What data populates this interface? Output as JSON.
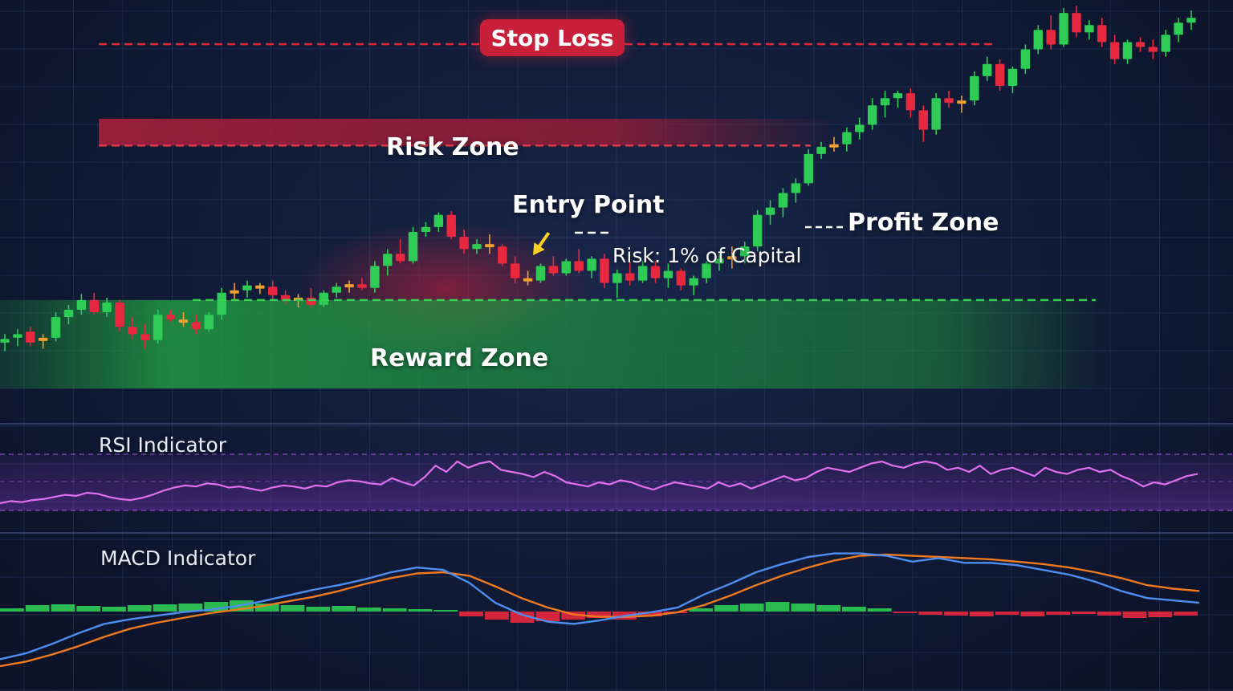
{
  "labels": {
    "stop_loss": "Stop Loss",
    "risk_zone": "Risk Zone",
    "reward_zone": "Reward Zone",
    "entry_point": "Entry Point",
    "profit_zone": "Profit Zone",
    "risk_note": "Risk: 1% of Capital",
    "rsi_title": "RSI Indicator",
    "macd_title": "MACD Indicator"
  },
  "colors": {
    "background": "#0f1830",
    "bull_candle": "#2ecc55",
    "bear_candle": "#e8283e",
    "doji_candle": "#f0a030",
    "stop_loss_line": "#e0283c",
    "reward_line": "#38d050",
    "rsi_line": "#e070f0",
    "macd_line": "#4d8ef0",
    "signal_line": "#f07a20",
    "histogram_positive": "#2ecc55",
    "histogram_negative": "#e8283e",
    "entry_arrow": "#ffd020"
  },
  "chart_data": [
    {
      "type": "candlestick",
      "title": "",
      "candles": [
        {
          "o": 55,
          "h": 62,
          "l": 48,
          "c": 58
        },
        {
          "o": 59,
          "h": 66,
          "l": 52,
          "c": 62
        },
        {
          "o": 64,
          "h": 68,
          "l": 52,
          "c": 55
        },
        {
          "o": 57,
          "h": 62,
          "l": 50,
          "c": 59
        },
        {
          "o": 59,
          "h": 80,
          "l": 56,
          "c": 76
        },
        {
          "o": 76,
          "h": 86,
          "l": 70,
          "c": 82
        },
        {
          "o": 82,
          "h": 95,
          "l": 78,
          "c": 90
        },
        {
          "o": 90,
          "h": 96,
          "l": 78,
          "c": 80
        },
        {
          "o": 80,
          "h": 92,
          "l": 76,
          "c": 88
        },
        {
          "o": 88,
          "h": 90,
          "l": 64,
          "c": 68
        },
        {
          "o": 68,
          "h": 76,
          "l": 58,
          "c": 62
        },
        {
          "o": 62,
          "h": 70,
          "l": 50,
          "c": 57
        },
        {
          "o": 57,
          "h": 82,
          "l": 54,
          "c": 78
        },
        {
          "o": 78,
          "h": 82,
          "l": 72,
          "c": 74
        },
        {
          "o": 74,
          "h": 80,
          "l": 68,
          "c": 72
        },
        {
          "o": 72,
          "h": 78,
          "l": 62,
          "c": 66
        },
        {
          "o": 66,
          "h": 80,
          "l": 64,
          "c": 78
        },
        {
          "o": 78,
          "h": 100,
          "l": 74,
          "c": 96
        },
        {
          "o": 96,
          "h": 104,
          "l": 90,
          "c": 98
        },
        {
          "o": 98,
          "h": 106,
          "l": 92,
          "c": 102
        },
        {
          "o": 102,
          "h": 104,
          "l": 95,
          "c": 101
        },
        {
          "o": 101,
          "h": 106,
          "l": 90,
          "c": 94
        },
        {
          "o": 94,
          "h": 98,
          "l": 86,
          "c": 90
        },
        {
          "o": 90,
          "h": 95,
          "l": 84,
          "c": 92
        },
        {
          "o": 92,
          "h": 100,
          "l": 84,
          "c": 86
        },
        {
          "o": 86,
          "h": 98,
          "l": 84,
          "c": 96
        },
        {
          "o": 96,
          "h": 104,
          "l": 92,
          "c": 101
        },
        {
          "o": 101,
          "h": 106,
          "l": 96,
          "c": 103
        },
        {
          "o": 103,
          "h": 108,
          "l": 98,
          "c": 100
        },
        {
          "o": 100,
          "h": 122,
          "l": 96,
          "c": 118
        },
        {
          "o": 118,
          "h": 132,
          "l": 110,
          "c": 128
        },
        {
          "o": 128,
          "h": 140,
          "l": 120,
          "c": 122
        },
        {
          "o": 122,
          "h": 150,
          "l": 120,
          "c": 146
        },
        {
          "o": 146,
          "h": 154,
          "l": 142,
          "c": 150
        },
        {
          "o": 150,
          "h": 162,
          "l": 146,
          "c": 160
        },
        {
          "o": 160,
          "h": 163,
          "l": 140,
          "c": 142
        },
        {
          "o": 142,
          "h": 148,
          "l": 128,
          "c": 132
        },
        {
          "o": 132,
          "h": 140,
          "l": 128,
          "c": 136
        },
        {
          "o": 136,
          "h": 144,
          "l": 128,
          "c": 134
        },
        {
          "o": 134,
          "h": 136,
          "l": 118,
          "c": 120
        },
        {
          "o": 120,
          "h": 126,
          "l": 104,
          "c": 108
        },
        {
          "o": 108,
          "h": 114,
          "l": 102,
          "c": 106
        },
        {
          "o": 106,
          "h": 120,
          "l": 104,
          "c": 118
        },
        {
          "o": 118,
          "h": 126,
          "l": 110,
          "c": 112
        },
        {
          "o": 112,
          "h": 124,
          "l": 110,
          "c": 122
        },
        {
          "o": 122,
          "h": 132,
          "l": 112,
          "c": 114
        },
        {
          "o": 114,
          "h": 126,
          "l": 108,
          "c": 124
        },
        {
          "o": 124,
          "h": 128,
          "l": 100,
          "c": 104
        },
        {
          "o": 104,
          "h": 115,
          "l": 92,
          "c": 112
        },
        {
          "o": 112,
          "h": 122,
          "l": 102,
          "c": 106
        },
        {
          "o": 106,
          "h": 122,
          "l": 104,
          "c": 118
        },
        {
          "o": 118,
          "h": 122,
          "l": 104,
          "c": 108
        },
        {
          "o": 108,
          "h": 120,
          "l": 100,
          "c": 114
        },
        {
          "o": 114,
          "h": 116,
          "l": 98,
          "c": 102
        },
        {
          "o": 102,
          "h": 110,
          "l": 94,
          "c": 108
        },
        {
          "o": 108,
          "h": 122,
          "l": 104,
          "c": 120
        },
        {
          "o": 120,
          "h": 128,
          "l": 114,
          "c": 124
        },
        {
          "o": 124,
          "h": 134,
          "l": 116,
          "c": 126
        },
        {
          "o": 126,
          "h": 138,
          "l": 120,
          "c": 134
        },
        {
          "o": 134,
          "h": 164,
          "l": 130,
          "c": 160
        },
        {
          "o": 160,
          "h": 172,
          "l": 152,
          "c": 166
        },
        {
          "o": 166,
          "h": 182,
          "l": 158,
          "c": 178
        },
        {
          "o": 178,
          "h": 190,
          "l": 170,
          "c": 186
        },
        {
          "o": 186,
          "h": 214,
          "l": 184,
          "c": 210
        },
        {
          "o": 210,
          "h": 220,
          "l": 206,
          "c": 216
        },
        {
          "o": 216,
          "h": 224,
          "l": 212,
          "c": 218
        },
        {
          "o": 218,
          "h": 232,
          "l": 212,
          "c": 228
        },
        {
          "o": 228,
          "h": 240,
          "l": 222,
          "c": 234
        },
        {
          "o": 234,
          "h": 256,
          "l": 230,
          "c": 250
        },
        {
          "o": 250,
          "h": 262,
          "l": 240,
          "c": 256
        },
        {
          "o": 256,
          "h": 262,
          "l": 248,
          "c": 260
        },
        {
          "o": 260,
          "h": 264,
          "l": 240,
          "c": 246
        },
        {
          "o": 246,
          "h": 250,
          "l": 220,
          "c": 230
        },
        {
          "o": 230,
          "h": 260,
          "l": 226,
          "c": 256
        },
        {
          "o": 256,
          "h": 262,
          "l": 248,
          "c": 252
        },
        {
          "o": 252,
          "h": 258,
          "l": 244,
          "c": 254
        },
        {
          "o": 254,
          "h": 278,
          "l": 250,
          "c": 274
        },
        {
          "o": 274,
          "h": 290,
          "l": 270,
          "c": 284
        },
        {
          "o": 284,
          "h": 288,
          "l": 262,
          "c": 266
        },
        {
          "o": 266,
          "h": 282,
          "l": 260,
          "c": 280
        },
        {
          "o": 280,
          "h": 300,
          "l": 276,
          "c": 296
        },
        {
          "o": 296,
          "h": 316,
          "l": 292,
          "c": 312
        },
        {
          "o": 312,
          "h": 324,
          "l": 296,
          "c": 300
        },
        {
          "o": 300,
          "h": 330,
          "l": 298,
          "c": 326
        },
        {
          "o": 326,
          "h": 332,
          "l": 306,
          "c": 310
        },
        {
          "o": 310,
          "h": 320,
          "l": 304,
          "c": 316
        },
        {
          "o": 316,
          "h": 322,
          "l": 298,
          "c": 302
        },
        {
          "o": 302,
          "h": 308,
          "l": 284,
          "c": 288
        },
        {
          "o": 288,
          "h": 304,
          "l": 284,
          "c": 302
        },
        {
          "o": 302,
          "h": 306,
          "l": 294,
          "c": 298
        },
        {
          "o": 298,
          "h": 304,
          "l": 288,
          "c": 294
        },
        {
          "o": 294,
          "h": 312,
          "l": 290,
          "c": 308
        },
        {
          "o": 308,
          "h": 322,
          "l": 302,
          "c": 318
        },
        {
          "o": 318,
          "h": 328,
          "l": 312,
          "c": 322
        }
      ],
      "levels": {
        "stop_loss": 320,
        "risk_zone_bottom": 217,
        "reward_line": 90
      },
      "ylim": [
        20,
        330
      ]
    },
    {
      "type": "line",
      "title": "RSI Indicator",
      "series": [
        {
          "values": [
            30,
            32,
            31,
            33,
            34,
            36,
            38,
            37,
            40,
            39,
            36,
            34,
            33,
            35,
            38,
            42,
            45,
            47,
            46,
            49,
            48,
            45,
            46,
            44,
            42,
            45,
            47,
            46,
            44,
            47,
            46,
            50,
            52,
            51,
            49,
            48,
            54,
            50,
            47,
            55,
            66,
            60,
            70,
            64,
            68,
            70,
            62,
            60,
            58,
            55,
            60,
            56,
            50,
            48,
            46,
            50,
            48,
            52,
            50,
            46,
            43,
            47,
            50,
            48,
            46,
            44,
            50,
            46,
            49,
            44,
            48,
            52,
            56,
            52,
            54,
            60,
            64,
            62,
            60,
            64,
            68,
            70,
            66,
            64,
            68,
            70,
            68,
            62,
            64,
            60,
            66,
            58,
            62,
            64,
            60,
            56,
            64,
            60,
            58,
            62,
            64,
            60,
            62,
            56,
            52,
            46,
            50,
            48,
            52,
            56,
            58
          ],
          "ylim": [
            0,
            100
          ]
        }
      ]
    },
    {
      "type": "line",
      "title": "MACD Indicator",
      "series": [
        {
          "values": [
            -60,
            -55,
            -47,
            -38,
            -30,
            -26,
            -23,
            -20,
            -18,
            -15,
            -11,
            -6,
            -1,
            3,
            8,
            14,
            18,
            16,
            5,
            -12,
            -22,
            -28,
            -30,
            -27,
            -23,
            -20,
            -16,
            -5,
            4,
            14,
            21,
            27,
            30,
            30,
            28,
            23,
            26,
            22,
            22,
            20,
            16,
            12,
            6,
            -2,
            -8,
            -10,
            -12
          ],
          "ylim": [
            -70,
            42
          ]
        },
        {
          "values": [
            -66,
            -62,
            -56,
            -49,
            -41,
            -34,
            -29,
            -25,
            -21,
            -18,
            -15,
            -11,
            -7,
            -2,
            4,
            9,
            13,
            14,
            11,
            2,
            -8,
            -16,
            -22,
            -24,
            -24,
            -23,
            -20,
            -14,
            -6,
            3,
            11,
            18,
            24,
            28,
            29,
            28,
            27,
            26,
            25,
            23,
            21,
            18,
            14,
            9,
            3,
            0,
            -2
          ],
          "ylim": [
            -70,
            42
          ]
        },
        {
          "values": [
            4,
            8,
            9,
            7,
            6,
            8,
            9,
            10,
            12,
            14,
            10,
            8,
            6,
            7,
            5,
            4,
            3,
            2,
            -6,
            -10,
            -14,
            -12,
            -10,
            -8,
            -10,
            -6,
            -2,
            4,
            8,
            10,
            12,
            10,
            8,
            6,
            4,
            -2,
            -4,
            -5,
            -6,
            -4,
            -6,
            -4,
            -3,
            -5,
            -8,
            -7,
            -5
          ],
          "ylim": [
            -24,
            24
          ]
        }
      ]
    }
  ]
}
